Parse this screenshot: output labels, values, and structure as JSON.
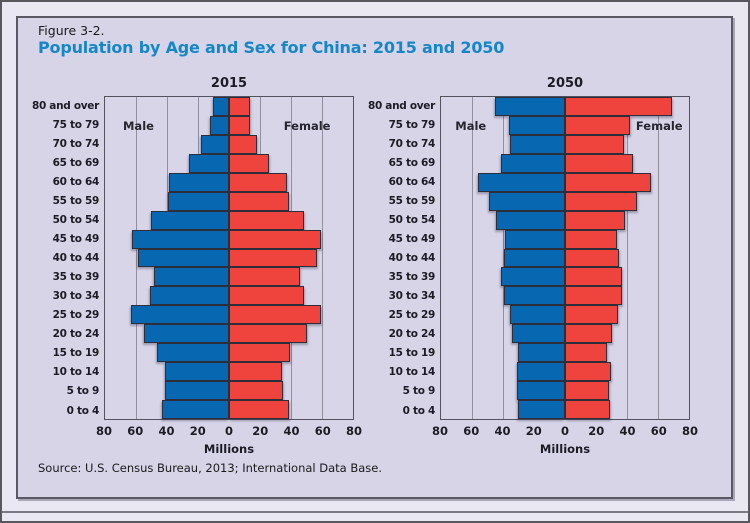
{
  "figure": {
    "label": "Figure 3-2.",
    "title": "Population by Age and Sex for China: 2015 and 2050",
    "source": "Source: U.S. Census Bureau, 2013; International Data Base."
  },
  "colors": {
    "male_blue": "#0768B1",
    "female_red": "#EF443D",
    "panel_lavender": "#D7D4E8",
    "title_blue": "#1487CA",
    "bar_border": "#2E2E3A",
    "gridline_gray": "#8F8F9D"
  },
  "side_labels": {
    "male": "Male",
    "female": "Female"
  },
  "axis": {
    "tick_labels": [
      "80",
      "60",
      "40",
      "20",
      "0",
      "20",
      "40",
      "60",
      "80"
    ],
    "axis_title": "Millions",
    "max_millions": 80,
    "gridline_step_millions": 20
  },
  "chart_data": [
    {
      "type": "bar",
      "subtype": "population_pyramid",
      "title": "2015",
      "xlabel": "Millions",
      "xlim": [
        -80,
        80
      ],
      "legend_position": "in-plot (Male left, Female right)",
      "grid": true,
      "categories_top_to_bottom": [
        "80 and over",
        "75 to 79",
        "70 to 74",
        "65 to 69",
        "60 to 64",
        "55 to 59",
        "50 to 54",
        "45 to 49",
        "40 to 44",
        "35 to 39",
        "30 to 34",
        "25 to 29",
        "20 to 24",
        "15 to 19",
        "10 to 14",
        "5 to 9",
        "0 to 4"
      ],
      "series": [
        {
          "name": "Male",
          "color": "#0768B1",
          "values": [
            10.5,
            12,
            18,
            26,
            38.5,
            39.5,
            50.5,
            62.5,
            59,
            48.5,
            51,
            63.5,
            55,
            46.5,
            41.5,
            41,
            43
          ]
        },
        {
          "name": "Female",
          "color": "#EF443D",
          "values": [
            13.5,
            13.5,
            18,
            26,
            37.5,
            39,
            48.5,
            59.5,
            57,
            46,
            48.5,
            59.5,
            50,
            39.5,
            34,
            35,
            38.5
          ]
        }
      ]
    },
    {
      "type": "bar",
      "subtype": "population_pyramid",
      "title": "2050",
      "xlabel": "Millions",
      "xlim": [
        -80,
        80
      ],
      "legend_position": "in-plot (Male left, Female right)",
      "grid": true,
      "categories_top_to_bottom": [
        "80 and over",
        "75 to 79",
        "70 to 74",
        "65 to 69",
        "60 to 64",
        "55 to 59",
        "50 to 54",
        "45 to 49",
        "40 to 44",
        "35 to 39",
        "30 to 34",
        "25 to 29",
        "20 to 24",
        "15 to 19",
        "10 to 14",
        "5 to 9",
        "0 to 4"
      ],
      "series": [
        {
          "name": "Male",
          "color": "#0768B1",
          "values": [
            45,
            36,
            35.5,
            41.5,
            56,
            49,
            44.5,
            39,
            39.5,
            41.5,
            39.5,
            35.5,
            34,
            30.5,
            31,
            31,
            30.5
          ]
        },
        {
          "name": "Female",
          "color": "#EF443D",
          "values": [
            69,
            42,
            38,
            44,
            55.5,
            46.5,
            39,
            33.5,
            35,
            37,
            37,
            34.5,
            30,
            27,
            29.5,
            28.5,
            29
          ]
        }
      ]
    }
  ]
}
